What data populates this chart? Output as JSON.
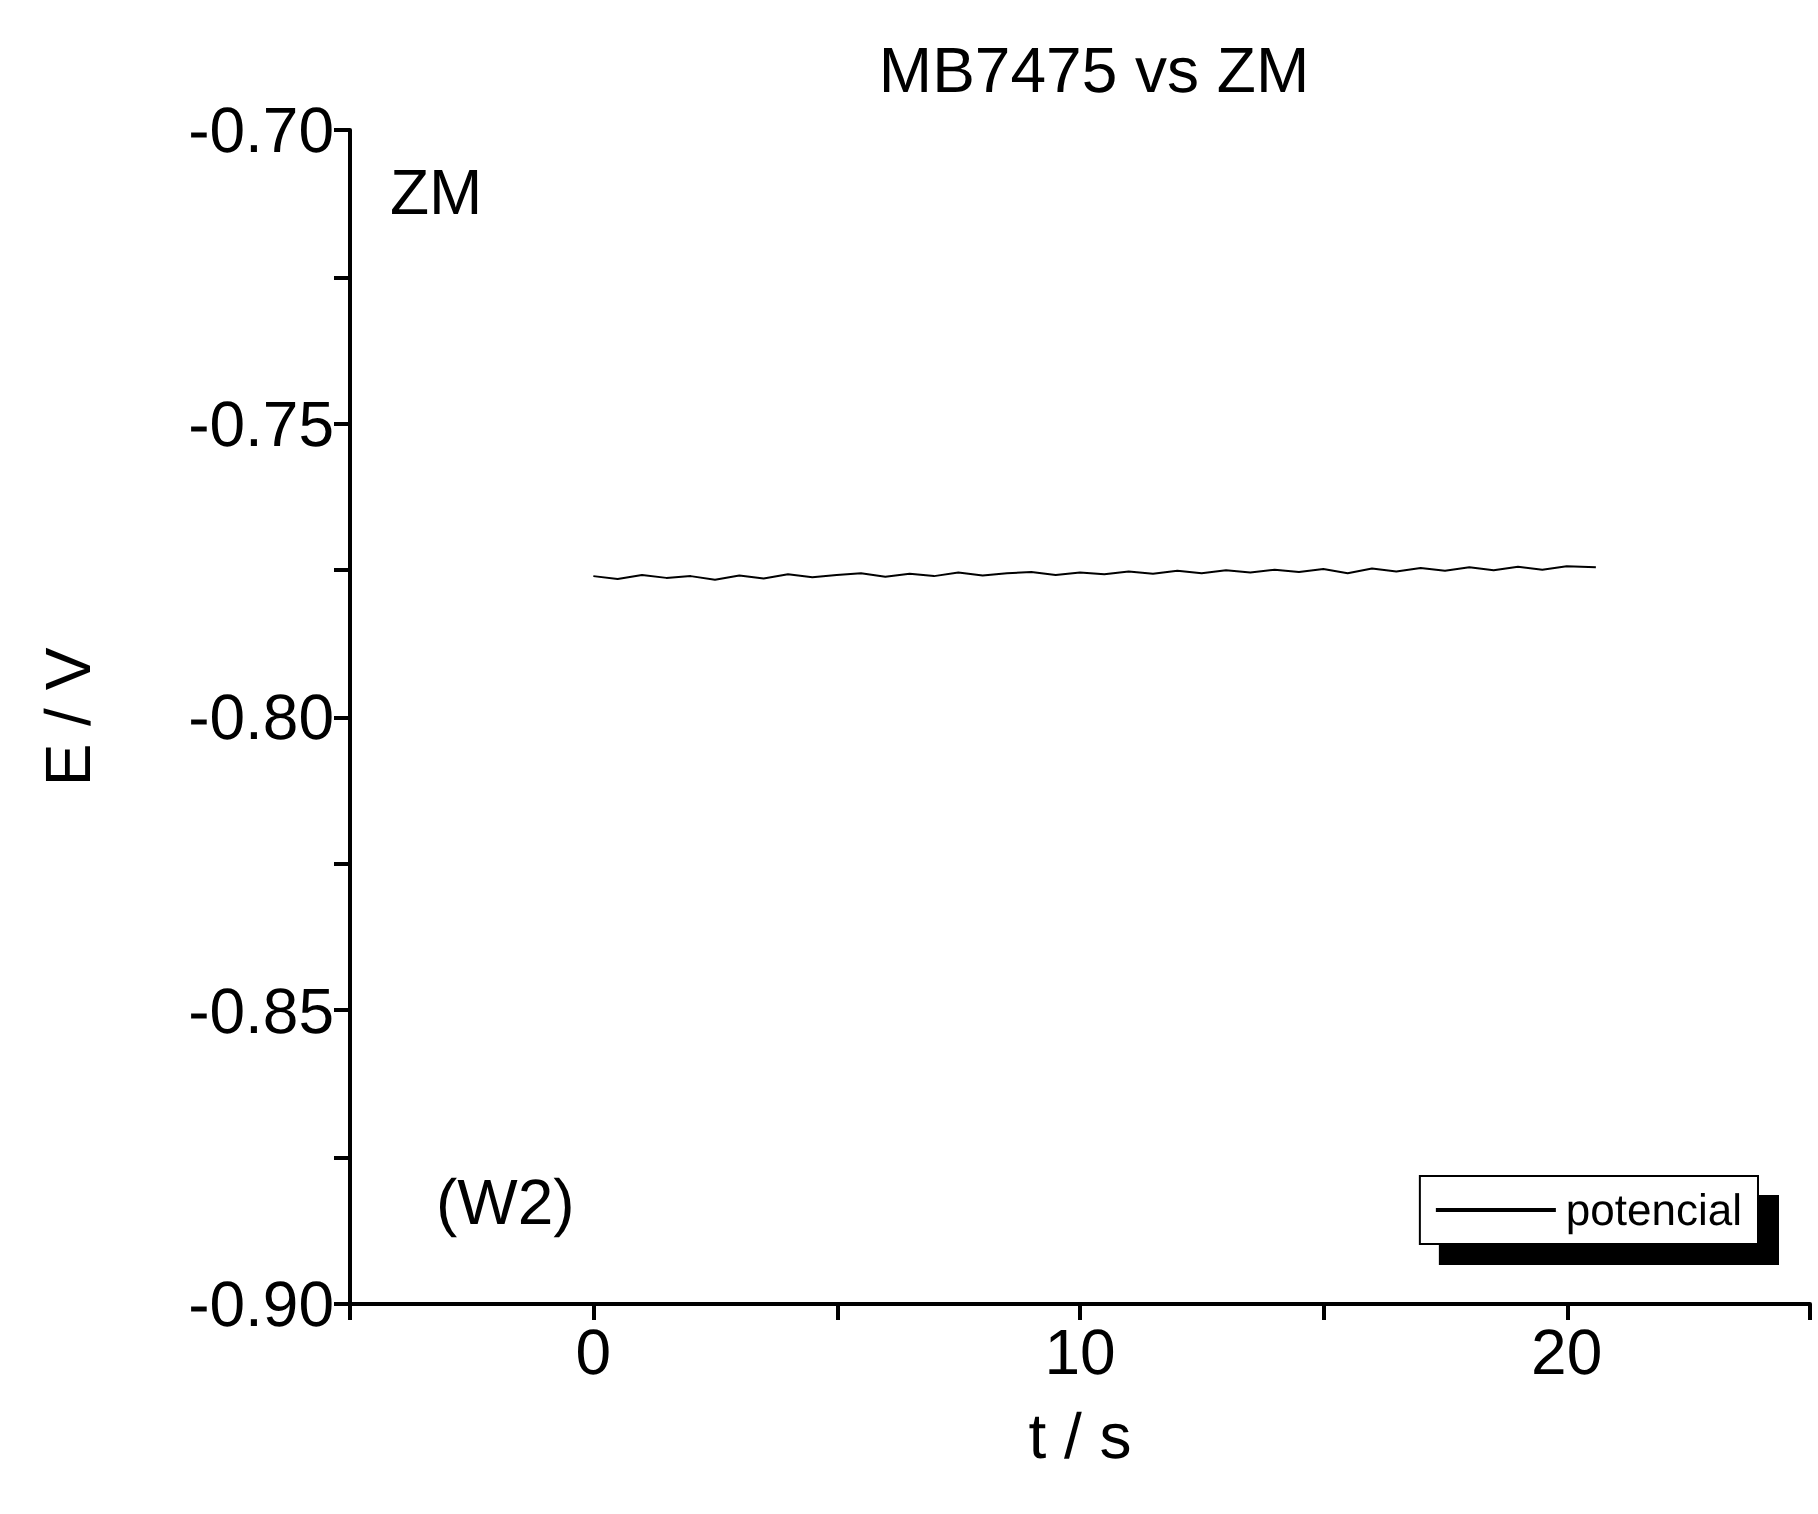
{
  "chart_data": {
    "type": "line",
    "title": "MB7475 vs ZM",
    "xlabel": "t / s",
    "ylabel": "E / V",
    "annotations": [
      "ZM",
      "(W2)"
    ],
    "series": [
      {
        "name": "potencial",
        "color": "#000000",
        "x": [
          0,
          0.5,
          1,
          1.5,
          2,
          2.5,
          3,
          3.5,
          4,
          4.5,
          5,
          5.5,
          6,
          6.5,
          7,
          7.5,
          8,
          8.5,
          9,
          9.5,
          10,
          10.5,
          11,
          11.5,
          12,
          12.5,
          13,
          13.5,
          14,
          14.5,
          15,
          15.5,
          16,
          16.5,
          17,
          17.5,
          18,
          18.5,
          19,
          19.5,
          20,
          20.6
        ],
        "values": [
          -0.776,
          -0.7765,
          -0.7758,
          -0.7763,
          -0.776,
          -0.7766,
          -0.7759,
          -0.7764,
          -0.7757,
          -0.7762,
          -0.7758,
          -0.7755,
          -0.7761,
          -0.7756,
          -0.776,
          -0.7754,
          -0.7759,
          -0.7755,
          -0.7753,
          -0.7758,
          -0.7754,
          -0.7757,
          -0.7752,
          -0.7756,
          -0.7751,
          -0.7755,
          -0.775,
          -0.7754,
          -0.7749,
          -0.7753,
          -0.7748,
          -0.7755,
          -0.7747,
          -0.7752,
          -0.7746,
          -0.7751,
          -0.7745,
          -0.775,
          -0.7744,
          -0.7749,
          -0.7743,
          -0.7745
        ]
      }
    ],
    "xlim": [
      -5,
      25
    ],
    "xticks": [
      {
        "value": -5,
        "label": null
      },
      0,
      {
        "value": 5,
        "label": null
      },
      10,
      {
        "value": 15,
        "label": null
      },
      20,
      {
        "value": 25,
        "label": null
      }
    ],
    "ylim": [
      -0.9,
      -0.7
    ],
    "yticks": [
      {
        "value": -0.9,
        "label": "-0.90"
      },
      {
        "value": -0.875,
        "label": null
      },
      {
        "value": -0.85,
        "label": "-0.85"
      },
      {
        "value": -0.825,
        "label": null
      },
      {
        "value": -0.8,
        "label": "-0.80"
      },
      {
        "value": -0.775,
        "label": null
      },
      {
        "value": -0.75,
        "label": "-0.75"
      },
      {
        "value": -0.725,
        "label": null
      },
      {
        "value": -0.7,
        "label": "-0.70"
      }
    ],
    "grid": false,
    "legend": "bottom right",
    "marker": "none",
    "line_style": "solid"
  }
}
